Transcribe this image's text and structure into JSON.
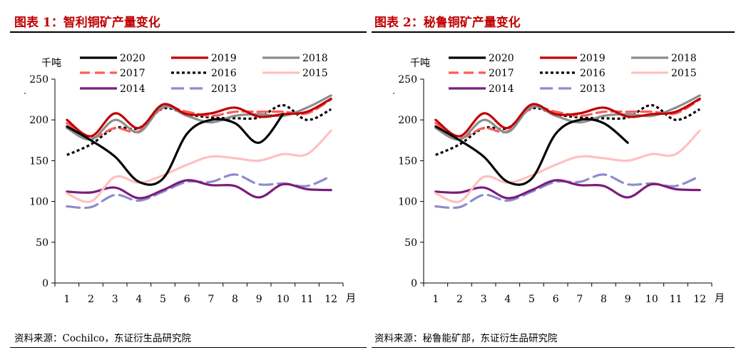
{
  "charts": [
    {
      "title": "图表 1：智利铜矿产量变化",
      "source": "资料来源：Cochilco，东证衍生品研究院",
      "chart_data": {
        "type": "line",
        "unit_label": "千吨",
        "x_unit_label": "月",
        "categories": [
          "1",
          "2",
          "3",
          "4",
          "5",
          "6",
          "7",
          "8",
          "9",
          "10",
          "11",
          "12"
        ],
        "yticks": [
          "0",
          "50",
          "100",
          "150",
          "200",
          "250"
        ],
        "ylim": [
          0,
          250
        ],
        "legend_position": "top",
        "series": [
          {
            "name": "2020",
            "color": "#000000",
            "dash": "solid",
            "values": [
              192,
              175,
              155,
              124,
              128,
              183,
              200,
              196,
              172,
              207,
              null,
              null
            ]
          },
          {
            "name": "2019",
            "color": "#c00000",
            "dash": "solid",
            "values": [
              200,
              180,
              208,
              190,
              219,
              207,
              208,
              215,
              204,
              207,
              210,
              226
            ]
          },
          {
            "name": "2018",
            "color": "#8c8c8c",
            "dash": "solid",
            "values": [
              190,
              176,
              200,
              185,
              216,
              205,
              197,
              205,
              207,
              205,
              215,
              230
            ]
          },
          {
            "name": "2017",
            "color": "#ff5a5a",
            "dash": "dash",
            "values": [
              196,
              178,
              190,
              186,
              215,
              210,
              205,
              210,
              210,
              210,
              208,
              225
            ]
          },
          {
            "name": "2016",
            "color": "#000000",
            "dash": "dot",
            "values": [
              157,
              170,
              190,
              190,
              214,
              207,
              203,
              202,
              203,
              218,
              200,
              213
            ]
          },
          {
            "name": "2015",
            "color": "#ffc0c0",
            "dash": "solid",
            "values": [
              110,
              100,
              130,
              123,
              132,
              145,
              155,
              153,
              150,
              158,
              158,
              187
            ]
          },
          {
            "name": "2014",
            "color": "#7b1c7b",
            "dash": "solid",
            "values": [
              112,
              111,
              117,
              104,
              114,
              126,
              120,
              119,
              105,
              121,
              115,
              114
            ]
          },
          {
            "name": "2013",
            "color": "#8c8ccc",
            "dash": "longdash",
            "values": [
              94,
              93,
              108,
              101,
              112,
              124,
              124,
              133,
              121,
              122,
              119,
              131
            ]
          }
        ]
      }
    },
    {
      "title": "图表 2：秘鲁铜矿产量变化",
      "source": "资料来源：秘鲁能矿部，东证衍生品研究院",
      "chart_data": {
        "type": "line",
        "unit_label": "千吨",
        "x_unit_label": "月",
        "categories": [
          "1",
          "2",
          "3",
          "4",
          "5",
          "6",
          "7",
          "8",
          "9",
          "10",
          "11",
          "12"
        ],
        "yticks": [
          "0",
          "50",
          "100",
          "150",
          "200",
          "250"
        ],
        "ylim": [
          0,
          250
        ],
        "legend_position": "top",
        "series": [
          {
            "name": "2020",
            "color": "#000000",
            "dash": "solid",
            "values": [
              192,
              175,
              155,
              124,
              128,
              183,
              200,
              196,
              172,
              null,
              null,
              null
            ]
          },
          {
            "name": "2019",
            "color": "#c00000",
            "dash": "solid",
            "values": [
              200,
              180,
              208,
              190,
              219,
              207,
              208,
              215,
              204,
              207,
              210,
              226
            ]
          },
          {
            "name": "2018",
            "color": "#8c8c8c",
            "dash": "solid",
            "values": [
              190,
              176,
              200,
              185,
              216,
              205,
              197,
              205,
              207,
              205,
              215,
              230
            ]
          },
          {
            "name": "2017",
            "color": "#ff5a5a",
            "dash": "dash",
            "values": [
              196,
              178,
              190,
              186,
              215,
              210,
              205,
              210,
              210,
              210,
              208,
              225
            ]
          },
          {
            "name": "2016",
            "color": "#000000",
            "dash": "dot",
            "values": [
              157,
              170,
              190,
              190,
              214,
              207,
              203,
              202,
              203,
              218,
              200,
              213
            ]
          },
          {
            "name": "2015",
            "color": "#ffc0c0",
            "dash": "solid",
            "values": [
              110,
              100,
              130,
              123,
              132,
              145,
              155,
              153,
              150,
              158,
              158,
              187
            ]
          },
          {
            "name": "2014",
            "color": "#7b1c7b",
            "dash": "solid",
            "values": [
              112,
              111,
              117,
              104,
              114,
              126,
              120,
              119,
              105,
              121,
              115,
              114
            ]
          },
          {
            "name": "2013",
            "color": "#8c8ccc",
            "dash": "longdash",
            "values": [
              94,
              93,
              108,
              101,
              112,
              124,
              124,
              133,
              121,
              122,
              119,
              131
            ]
          }
        ]
      }
    }
  ]
}
